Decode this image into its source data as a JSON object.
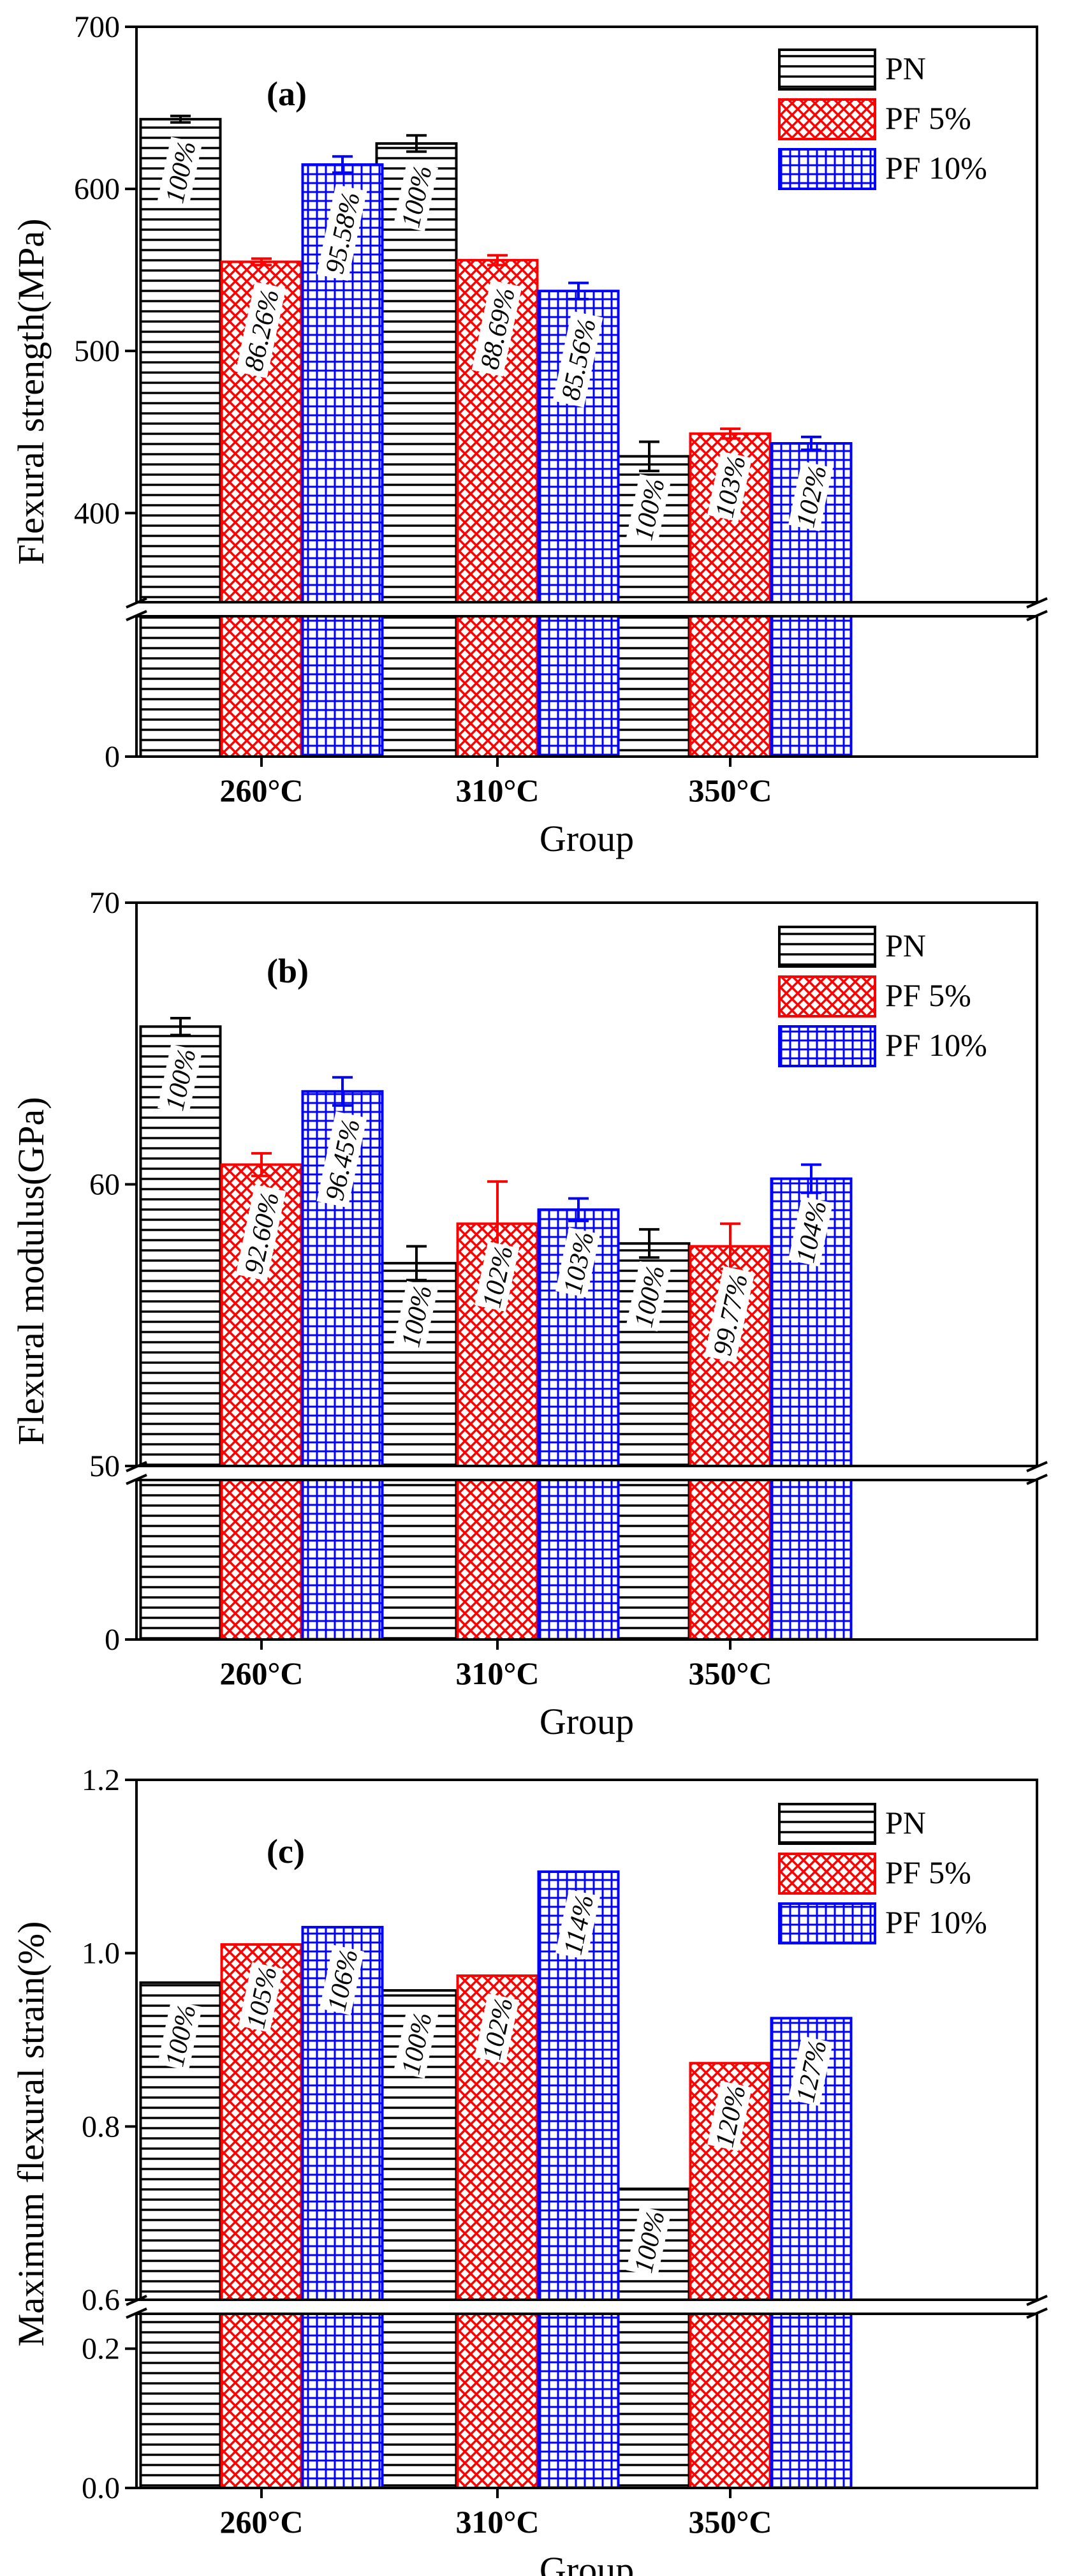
{
  "chart_data": [
    {
      "type": "bar",
      "panel_label": "(a)",
      "categories": [
        "260°C",
        "310°C",
        "350°C"
      ],
      "series": [
        {
          "name": "PN",
          "values": [
            643,
            628,
            435
          ],
          "errors": [
            2,
            5,
            9
          ],
          "labels": [
            "100%",
            "100%",
            "100%"
          ],
          "color": "#000000",
          "pattern": "hlines"
        },
        {
          "name": "PF 5%",
          "values": [
            555,
            556,
            449
          ],
          "errors": [
            2,
            3,
            3
          ],
          "labels": [
            "86.26%",
            "88.69%",
            "103%"
          ],
          "color": "#ff0000",
          "pattern": "cross"
        },
        {
          "name": "PF 10%",
          "values": [
            615,
            537,
            443
          ],
          "errors": [
            5,
            5,
            4
          ],
          "labels": [
            "95.58%",
            "85.56%",
            "102%"
          ],
          "color": "#0000ff",
          "pattern": "grid"
        }
      ],
      "xlabel": "Group",
      "ylabel": "Flexural strength(MPa)",
      "ylim_lower": [
        0,
        50
      ],
      "ylim_upper": [
        345,
        700
      ],
      "yticks": [
        "0",
        "400",
        "500",
        "600",
        "700"
      ],
      "legend": "top-right"
    },
    {
      "type": "bar",
      "panel_label": "(b)",
      "categories": [
        "260°C",
        "310°C",
        "350°C"
      ],
      "series": [
        {
          "name": "PN",
          "values": [
            65.6,
            57.2,
            57.9
          ],
          "errors": [
            0.3,
            0.6,
            0.5
          ],
          "labels": [
            "100%",
            "100%",
            "100%"
          ],
          "color": "#000000",
          "pattern": "hlines"
        },
        {
          "name": "PF 5%",
          "values": [
            60.7,
            58.6,
            57.8
          ],
          "errors": [
            0.4,
            1.5,
            0.8
          ],
          "labels": [
            "92.60%",
            "102%",
            "99.77%"
          ],
          "color": "#ff0000",
          "pattern": "cross"
        },
        {
          "name": "PF 10%",
          "values": [
            63.3,
            59.1,
            60.2
          ],
          "errors": [
            0.5,
            0.4,
            0.5
          ],
          "labels": [
            "96.45%",
            "103%",
            "104%"
          ],
          "color": "#0000ff",
          "pattern": "grid"
        }
      ],
      "xlabel": "Group",
      "ylabel": "Flexural modulus(GPa)",
      "ylim_lower": [
        0,
        10
      ],
      "ylim_upper": [
        50,
        70
      ],
      "yticks": [
        "0",
        "50",
        "60",
        "70"
      ],
      "legend": "top-right"
    },
    {
      "type": "bar",
      "panel_label": "(c)",
      "categories": [
        "260°C",
        "310°C",
        "350°C"
      ],
      "series": [
        {
          "name": "PN",
          "values": [
            0.966,
            0.957,
            0.728
          ],
          "labels": [
            "100%",
            "100%",
            "100%"
          ],
          "color": "#000000",
          "pattern": "hlines"
        },
        {
          "name": "PF 5%",
          "values": [
            1.01,
            0.974,
            0.873
          ],
          "labels": [
            "105%",
            "102%",
            "120%"
          ],
          "color": "#ff0000",
          "pattern": "cross"
        },
        {
          "name": "PF 10%",
          "values": [
            1.03,
            1.094,
            0.925
          ],
          "labels": [
            "106%",
            "114%",
            "127%"
          ],
          "color": "#0000ff",
          "pattern": "grid"
        }
      ],
      "xlabel": "Group",
      "ylabel": "Maximum flexural strain(%)",
      "ylim_lower": [
        0,
        0.25
      ],
      "ylim_upper": [
        0.6,
        1.2
      ],
      "yticks": [
        "0.0",
        "0.2",
        "0.6",
        "0.8",
        "1.0",
        "1.2"
      ],
      "legend": "top-right"
    }
  ]
}
